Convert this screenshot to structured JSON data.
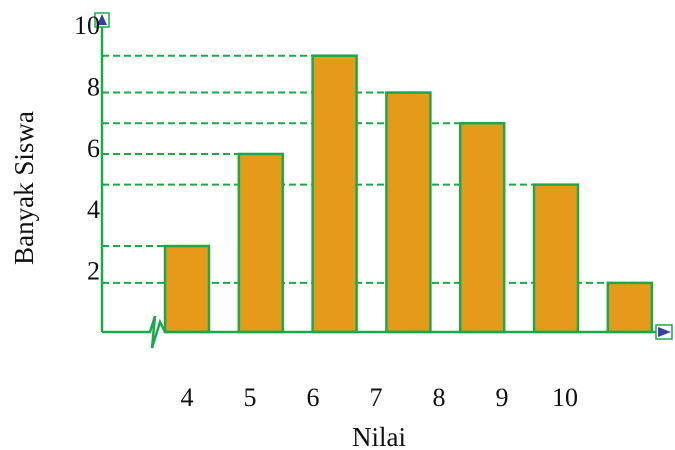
{
  "chart_data": {
    "type": "bar",
    "categories": [
      "4",
      "5",
      "6",
      "7",
      "8",
      "9",
      "10"
    ],
    "values": [
      2.8,
      5.8,
      9.0,
      7.8,
      6.8,
      4.8,
      1.6
    ],
    "xlabel": "Nilai",
    "ylabel": "Banyak Siswa",
    "y_ticks": [
      "2",
      "4",
      "6",
      "8",
      "10"
    ],
    "ylim": [
      0,
      10
    ],
    "grid": false,
    "reference_lines": "dashed",
    "axis_break": "x",
    "colors": {
      "bar_fill": "#E59A1A",
      "bar_stroke": "#1AAA4A",
      "axis": "#1AAA4A",
      "dash": "#1AAA4A",
      "arrow_fill": "#3B3FA0"
    }
  }
}
